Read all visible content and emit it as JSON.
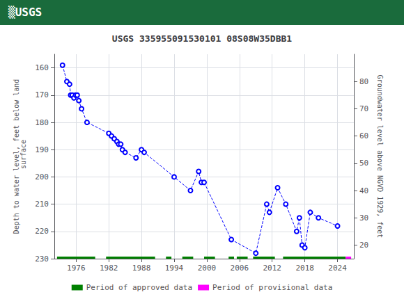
{
  "chart_data": {
    "type": "line",
    "title": "USGS 335955091530101 08S08W35DBB1",
    "annotation": "▒USGS",
    "ylabel": "Depth to water level, feet below land\n surface",
    "y2label": "Groundwater level above NGVD 1929, feet",
    "x": [
      1973.5,
      1974.3,
      1974.8,
      1975.0,
      1975.3,
      1975.6,
      1975.9,
      1976.2,
      1976.5,
      1977.0,
      1978.0,
      1982.0,
      1982.5,
      1983.0,
      1983.5,
      1983.8,
      1984.2,
      1984.5,
      1985.0,
      1987.0,
      1988.0,
      1988.5,
      1994.0,
      1997.0,
      1998.5,
      1999.0,
      1999.5,
      2004.5,
      2009.0,
      2011.0,
      2011.5,
      2013.0,
      2014.5,
      2016.5,
      2017.0,
      2017.5,
      2018.0,
      2019.0,
      2020.5,
      2024.0
    ],
    "series": [
      {
        "values": [
          159,
          165,
          166,
          170,
          170,
          171,
          170,
          170,
          172,
          175,
          180,
          184,
          185,
          186,
          187,
          188,
          188,
          190,
          191,
          193,
          190,
          191,
          200,
          205,
          198,
          202,
          202,
          223,
          228,
          210,
          213,
          204,
          210,
          220,
          215,
          225,
          226,
          213,
          215,
          218
        ],
        "color": "#0000ff",
        "line_style": "dashed",
        "marker": "circle"
      },
      {
        "name": "Period of approved data",
        "type": "band",
        "color": "#008000",
        "y": 230,
        "periods": [
          [
            1972.5,
            1979.5
          ],
          [
            1981.5,
            1990.5
          ],
          [
            1992.5,
            1993.5
          ],
          [
            1995.5,
            1997.5
          ],
          [
            1999.5,
            2001.5
          ],
          [
            2004.0,
            2005.0
          ],
          [
            2005.5,
            2007.5
          ],
          [
            2008.5,
            2012.5
          ],
          [
            2014.0,
            2025.5
          ]
        ]
      },
      {
        "name": "Period of provisional data",
        "type": "band",
        "color": "#ff00ff",
        "y": 230,
        "periods": [
          [
            2025.5,
            2026.5
          ]
        ]
      }
    ],
    "xlim": [
      1972,
      2027
    ],
    "xticks": [
      1976,
      1982,
      1988,
      1994,
      2000,
      2006,
      2012,
      2018,
      2024
    ],
    "ylim": [
      230,
      155
    ],
    "yticks": [
      160,
      170,
      180,
      190,
      200,
      210,
      220,
      230
    ],
    "y2lim": [
      15,
      90
    ],
    "y2ticks": [
      80,
      70,
      60,
      50,
      40,
      30,
      20
    ],
    "grid": true,
    "legend": "bottom"
  }
}
